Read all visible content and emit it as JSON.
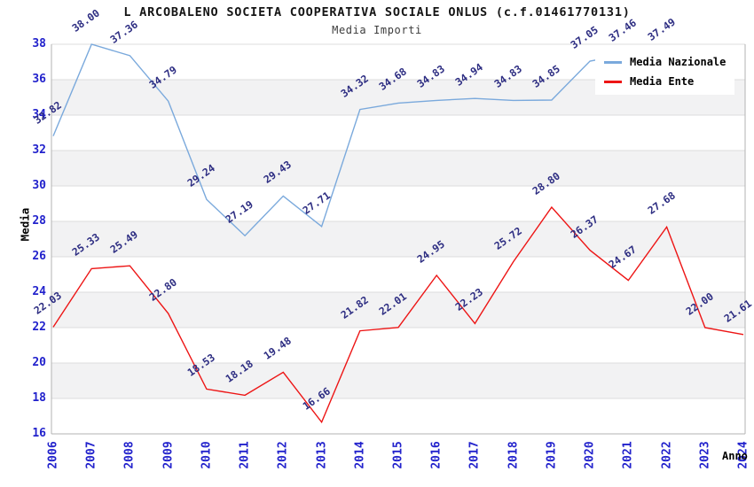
{
  "header": {
    "title": "L ARCOBALENO SOCIETA COOPERATIVA SOCIALE ONLUS (c.f.01461770131)",
    "subtitle": "Media Importi"
  },
  "chart_data": {
    "type": "line",
    "title": "L ARCOBALENO SOCIETA COOPERATIVA SOCIALE ONLUS (c.f.01461770131)",
    "subtitle": "Media Importi",
    "xlabel": "Anno",
    "ylabel": "Media",
    "ylim": [
      16,
      38
    ],
    "ytick_step": 2,
    "yticks": [
      16,
      18,
      20,
      22,
      24,
      26,
      28,
      30,
      32,
      34,
      36,
      38
    ],
    "grid": true,
    "banded_background": true,
    "legend_position": "top-right",
    "categories": [
      "2006",
      "2007",
      "2008",
      "2009",
      "2010",
      "2011",
      "2012",
      "2013",
      "2014",
      "2015",
      "2016",
      "2017",
      "2018",
      "2019",
      "2020",
      "2021",
      "2022",
      "2023",
      "2024"
    ],
    "series": [
      {
        "name": "Media Nazionale",
        "color": "#7aa9dc",
        "values": [
          32.82,
          38.0,
          37.36,
          34.79,
          29.24,
          27.19,
          29.43,
          27.71,
          34.32,
          34.68,
          34.83,
          34.94,
          34.83,
          34.85,
          37.05,
          37.46,
          37.49,
          null,
          null
        ],
        "labels": [
          "32.82",
          "38.00",
          "37.36",
          "34.79",
          "29.24",
          "27.19",
          "29.43",
          "27.71",
          "34.32",
          "34.68",
          "34.83",
          "34.94",
          "34.83",
          "34.85",
          "37.05",
          "37.46",
          "37.49",
          "",
          ""
        ]
      },
      {
        "name": "Media Ente",
        "color": "#ed1515",
        "values": [
          22.03,
          25.33,
          25.49,
          22.8,
          18.53,
          18.18,
          19.48,
          16.66,
          21.82,
          22.01,
          24.95,
          22.23,
          25.72,
          28.8,
          26.37,
          24.67,
          27.68,
          22.0,
          21.61
        ],
        "labels": [
          "22.03",
          "25.33",
          "25.49",
          "22.80",
          "18.53",
          "18.18",
          "19.48",
          "16.66",
          "21.82",
          "22.01",
          "24.95",
          "22.23",
          "25.72",
          "28.80",
          "26.37",
          "24.67",
          "27.68",
          "22.00",
          "21.61"
        ]
      }
    ]
  },
  "colors": {
    "band_gray": "#f2f2f3",
    "gridline": "#dcdcdc",
    "axis_line": "#b3b3b3",
    "tick_label": "#2222cc",
    "point_label": "#2d2d82",
    "background": "#ffffff"
  }
}
